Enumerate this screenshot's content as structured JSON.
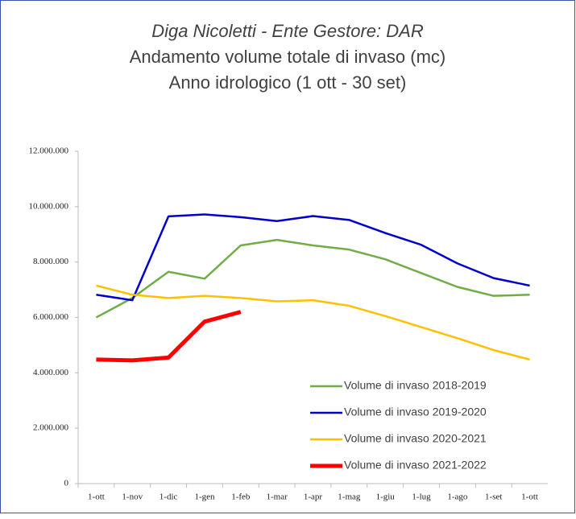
{
  "chart_data": {
    "type": "line",
    "title": [
      "Diga Nicoletti - Ente Gestore: DAR",
      "Andamento volume totale di invaso (mc)",
      "Anno idrologico (1 ott - 30 set)"
    ],
    "categories": [
      "1-ott",
      "1-nov",
      "1-dic",
      "1-gen",
      "1-feb",
      "1-mar",
      "1-apr",
      "1-mag",
      "1-giu",
      "1-lug",
      "1-ago",
      "1-set",
      "1-ott"
    ],
    "series": [
      {
        "name": "Volume di invaso 2018-2019",
        "color": "#70ad47",
        "width": 2.5,
        "values": [
          6000000,
          6700000,
          7650000,
          7400000,
          8600000,
          8800000,
          8600000,
          8450000,
          8100000,
          7600000,
          7100000,
          6780000,
          6820000
        ]
      },
      {
        "name": "Volume di invaso 2019-2020",
        "color": "#0000cc",
        "width": 2.5,
        "values": [
          6820000,
          6620000,
          9650000,
          9720000,
          9620000,
          9480000,
          9660000,
          9520000,
          9050000,
          8620000,
          7950000,
          7420000,
          7150000
        ]
      },
      {
        "name": "Volume di invaso 2020-2021",
        "color": "#ffc000",
        "width": 2.5,
        "values": [
          7150000,
          6820000,
          6700000,
          6780000,
          6700000,
          6580000,
          6620000,
          6420000,
          6050000,
          5650000,
          5250000,
          4820000,
          4480000
        ]
      },
      {
        "name": "Volume di invaso 2021-2022",
        "color": "#ff0000",
        "width": 5,
        "values": [
          4480000,
          4450000,
          4550000,
          5850000,
          6200000,
          null,
          null,
          null,
          null,
          null,
          null,
          null,
          null
        ]
      }
    ],
    "ylim": [
      0,
      12000000
    ],
    "yticks": [
      0,
      {
        "value": 2000000,
        "label": "2.000.000"
      },
      {
        "value": 4000000,
        "label": "4.000.000"
      },
      {
        "value": 6000000,
        "label": "6.000.000"
      },
      {
        "value": 8000000,
        "label": "8.000.000"
      },
      {
        "value": 10000000,
        "label": "10.000.000"
      },
      {
        "value": 12000000,
        "label": "12.000.000"
      }
    ],
    "legend": "lower right",
    "grid": false
  }
}
